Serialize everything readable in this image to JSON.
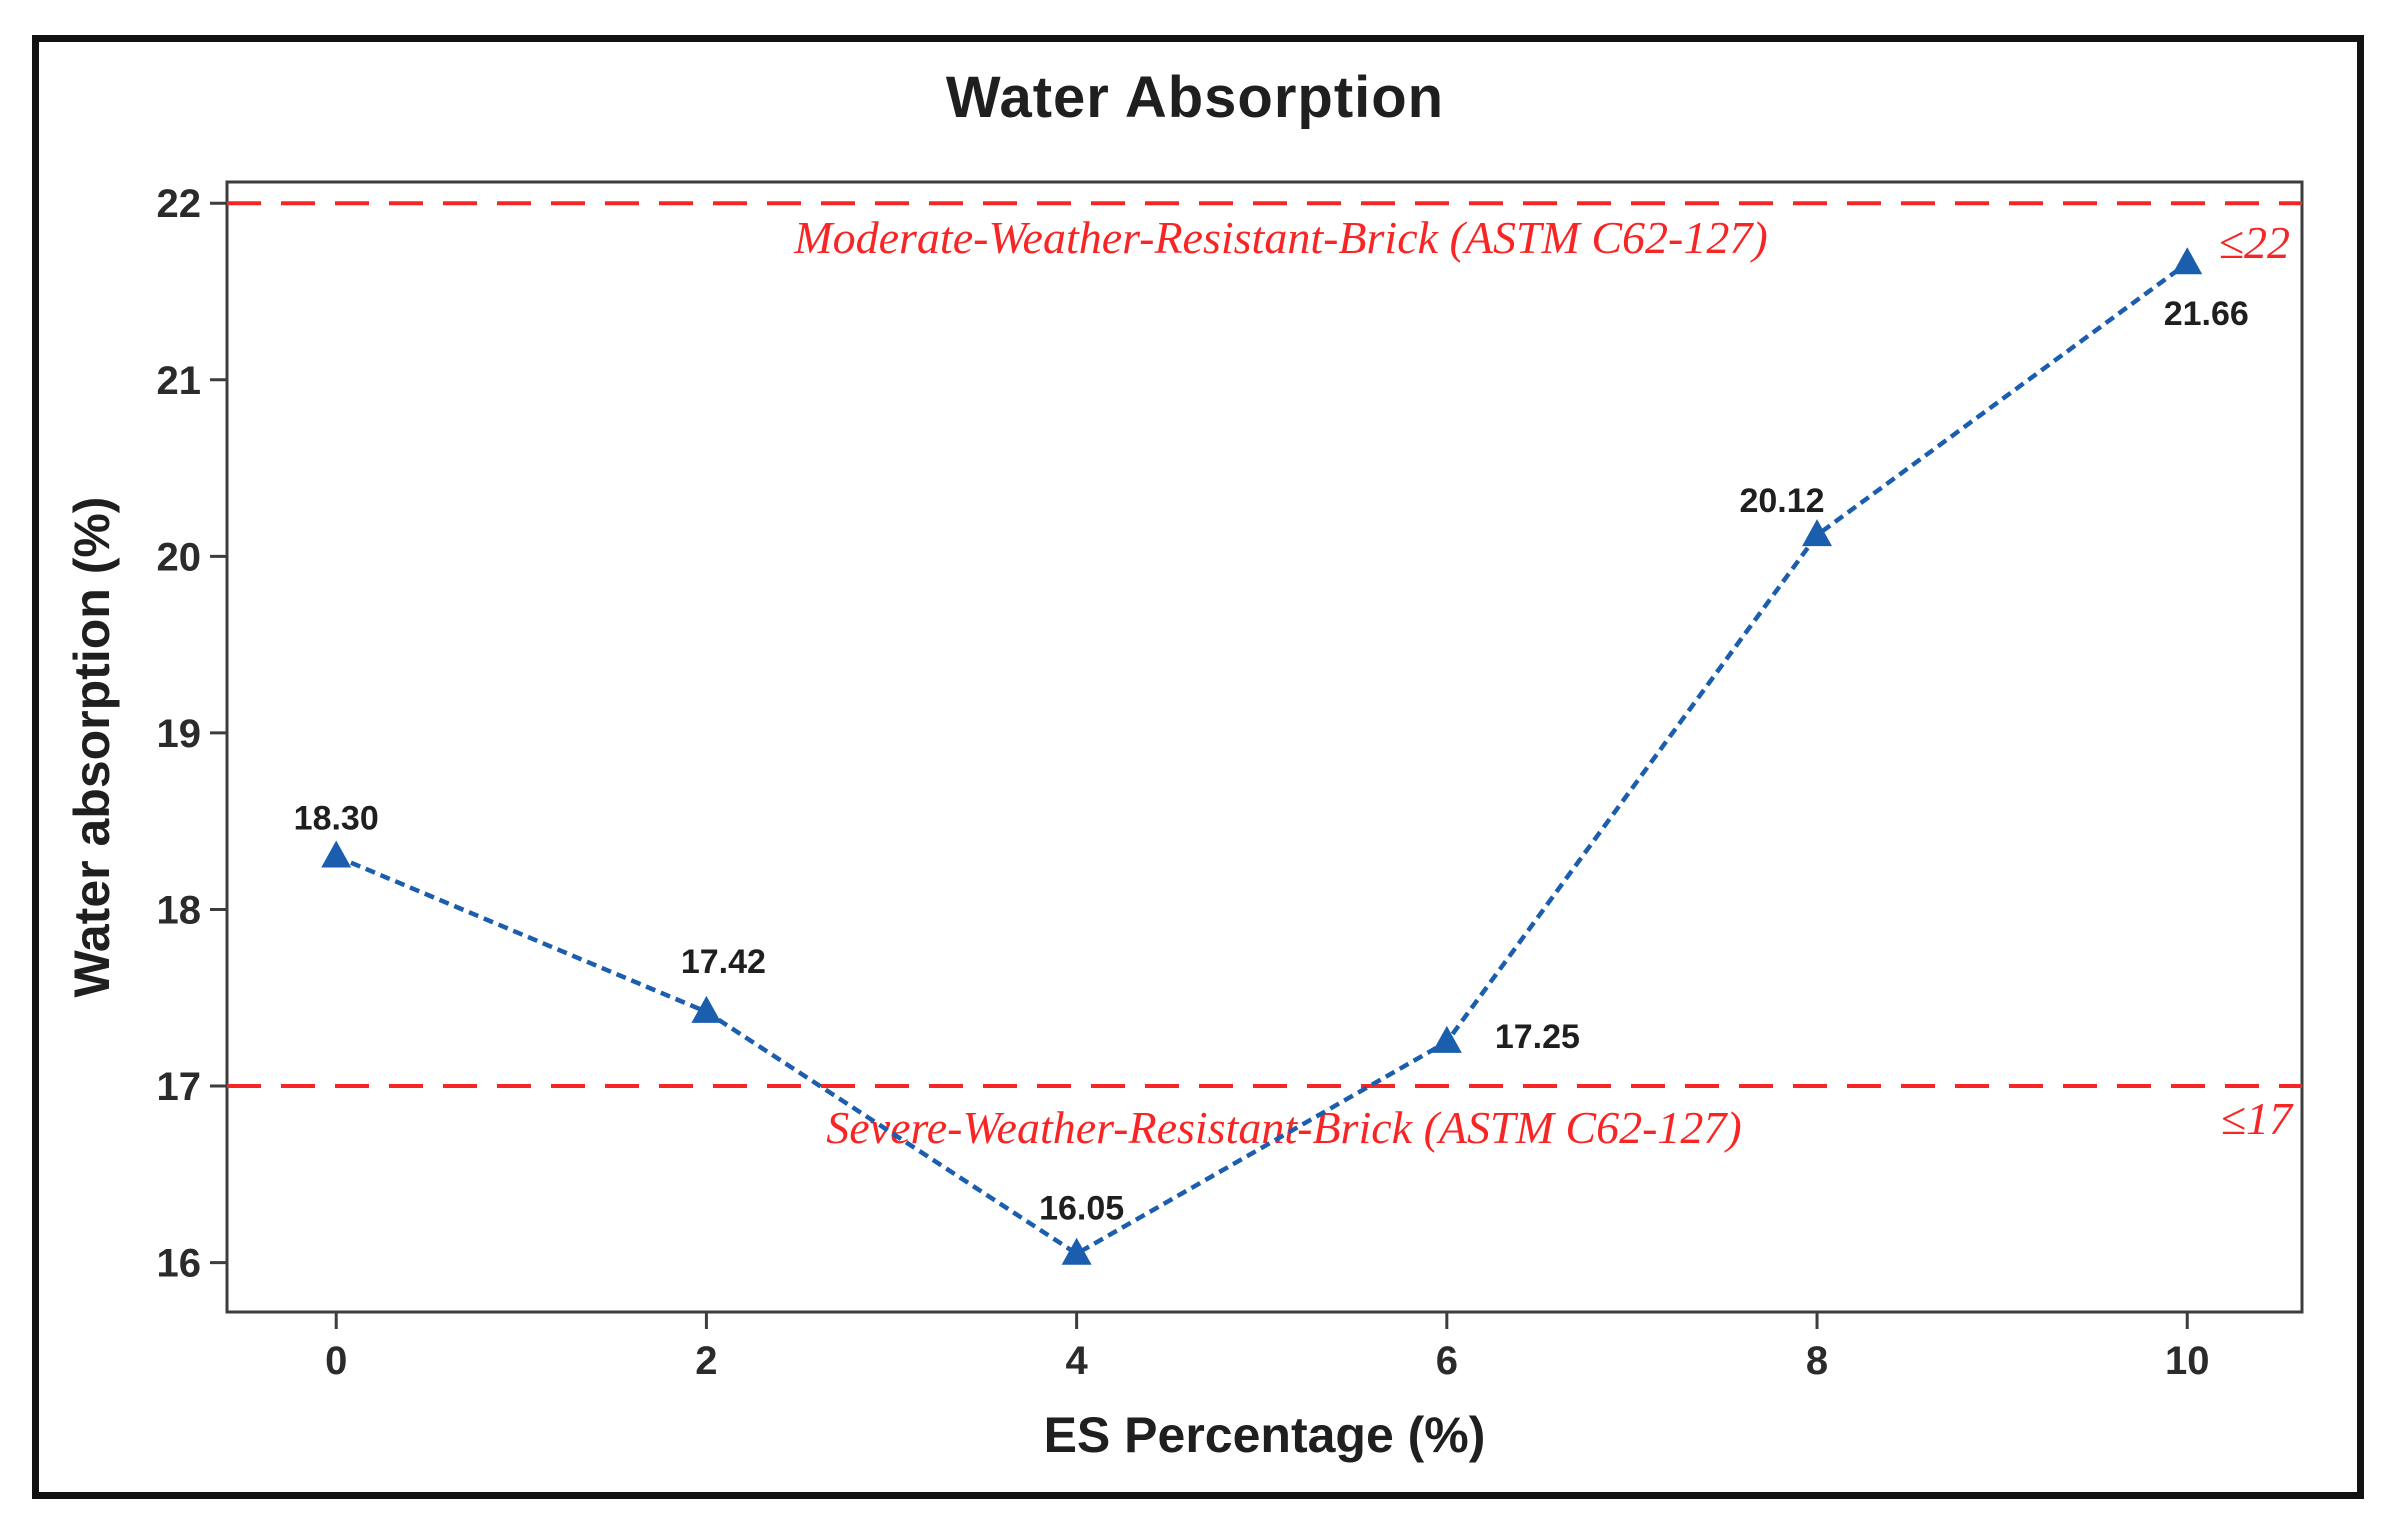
{
  "chart_data": {
    "type": "line",
    "title": "Water Absorption",
    "xlabel": "ES Percentage (%)",
    "ylabel": "Water absorption (%)",
    "x": [
      0,
      2,
      4,
      6,
      8,
      10
    ],
    "y": [
      18.3,
      17.42,
      16.05,
      17.25,
      20.12,
      21.66
    ],
    "point_labels": [
      "18.30",
      "17.42",
      "16.05",
      "17.25",
      "20.12",
      "21.66"
    ],
    "x_ticks": [
      "0",
      "2",
      "4",
      "6",
      "8",
      "10"
    ],
    "x_tick_values": [
      0,
      2,
      4,
      6,
      8,
      10
    ],
    "y_ticks": [
      "16",
      "17",
      "18",
      "19",
      "20",
      "21",
      "22"
    ],
    "y_tick_values": [
      16,
      17,
      18,
      19,
      20,
      21,
      22
    ],
    "xlim": [
      -0.59,
      10.62
    ],
    "ylim": [
      15.72,
      22.12
    ],
    "grid": false,
    "legend": "none",
    "marker": "triangle-up",
    "series_color": "#1b5eae",
    "reference_lines": [
      {
        "y": 22,
        "style": "dashed",
        "color": "#f82525",
        "label": "Moderate-Weather-Resistant-Brick (ASTM C62-127)",
        "limit_label": "≤22"
      },
      {
        "y": 17,
        "style": "dashed",
        "color": "#f82525",
        "label": "Severe-Weather-Resistant-Brick (ASTM C62-127)",
        "limit_label": "≤17"
      }
    ]
  }
}
